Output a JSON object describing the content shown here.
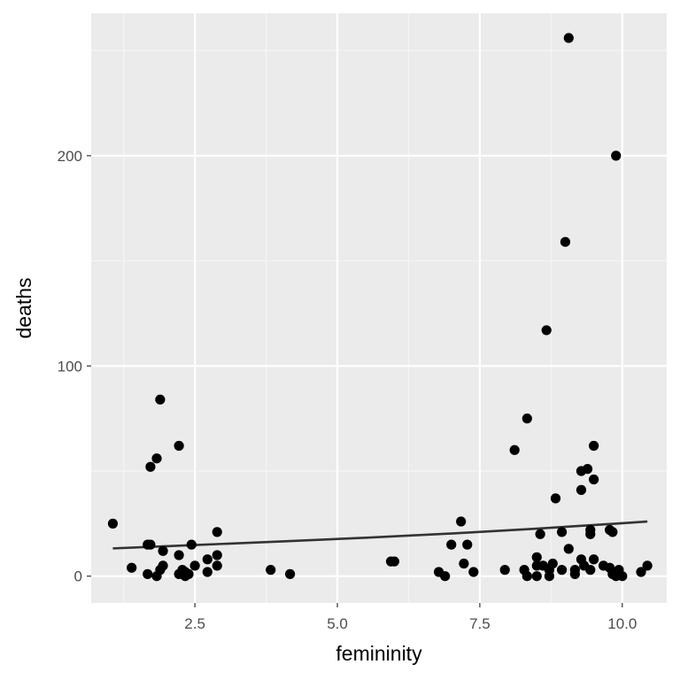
{
  "chart_data": {
    "type": "scatter",
    "title": "",
    "xlabel": "femininity",
    "ylabel": "deaths",
    "xlim": [
      0.68,
      10.78
    ],
    "ylim": [
      -12.75,
      267.75
    ],
    "x_ticks": [
      2.5,
      5.0,
      7.5,
      10.0
    ],
    "x_tick_labels": [
      "2.5",
      "5.0",
      "7.5",
      "10.0"
    ],
    "y_ticks": [
      0,
      100,
      200
    ],
    "y_tick_labels": [
      "0",
      "100",
      "200"
    ],
    "grid": true,
    "legend": "none",
    "colors": {
      "panel_background": "#ebebeb",
      "grid_major": "#ffffff",
      "grid_minor": "#f5f5f5",
      "points": "#000000",
      "trend_line": "#333333",
      "confidence_band": "#999999"
    },
    "points": [
      {
        "x": 1.06,
        "y": 25
      },
      {
        "x": 1.39,
        "y": 4
      },
      {
        "x": 1.67,
        "y": 1
      },
      {
        "x": 1.67,
        "y": 15
      },
      {
        "x": 1.72,
        "y": 52
      },
      {
        "x": 1.72,
        "y": 15
      },
      {
        "x": 1.83,
        "y": 0
      },
      {
        "x": 1.83,
        "y": 56
      },
      {
        "x": 1.89,
        "y": 84
      },
      {
        "x": 1.89,
        "y": 3
      },
      {
        "x": 1.94,
        "y": 5
      },
      {
        "x": 1.94,
        "y": 12
      },
      {
        "x": 2.22,
        "y": 62
      },
      {
        "x": 2.22,
        "y": 1
      },
      {
        "x": 2.22,
        "y": 10
      },
      {
        "x": 2.28,
        "y": 3
      },
      {
        "x": 2.33,
        "y": 0
      },
      {
        "x": 2.33,
        "y": 2
      },
      {
        "x": 2.39,
        "y": 1
      },
      {
        "x": 2.44,
        "y": 15
      },
      {
        "x": 2.5,
        "y": 5
      },
      {
        "x": 2.72,
        "y": 8
      },
      {
        "x": 2.72,
        "y": 2
      },
      {
        "x": 2.89,
        "y": 21
      },
      {
        "x": 2.89,
        "y": 10
      },
      {
        "x": 2.89,
        "y": 5
      },
      {
        "x": 3.83,
        "y": 3
      },
      {
        "x": 4.17,
        "y": 1
      },
      {
        "x": 5.94,
        "y": 7
      },
      {
        "x": 6.0,
        "y": 7
      },
      {
        "x": 6.78,
        "y": 2
      },
      {
        "x": 6.89,
        "y": 0
      },
      {
        "x": 7.0,
        "y": 15
      },
      {
        "x": 7.17,
        "y": 26
      },
      {
        "x": 7.22,
        "y": 6
      },
      {
        "x": 7.28,
        "y": 15
      },
      {
        "x": 7.39,
        "y": 2
      },
      {
        "x": 7.94,
        "y": 3
      },
      {
        "x": 8.11,
        "y": 60
      },
      {
        "x": 8.28,
        "y": 3
      },
      {
        "x": 8.33,
        "y": 75
      },
      {
        "x": 8.33,
        "y": 0
      },
      {
        "x": 8.5,
        "y": 9
      },
      {
        "x": 8.5,
        "y": 0
      },
      {
        "x": 8.5,
        "y": 5
      },
      {
        "x": 8.56,
        "y": 20
      },
      {
        "x": 8.61,
        "y": 5
      },
      {
        "x": 8.67,
        "y": 117
      },
      {
        "x": 8.72,
        "y": 0
      },
      {
        "x": 8.72,
        "y": 3
      },
      {
        "x": 8.78,
        "y": 6
      },
      {
        "x": 8.83,
        "y": 37
      },
      {
        "x": 8.94,
        "y": 21
      },
      {
        "x": 8.94,
        "y": 3
      },
      {
        "x": 9.0,
        "y": 159
      },
      {
        "x": 9.06,
        "y": 256
      },
      {
        "x": 9.06,
        "y": 13
      },
      {
        "x": 9.17,
        "y": 1
      },
      {
        "x": 9.17,
        "y": 3
      },
      {
        "x": 9.28,
        "y": 50
      },
      {
        "x": 9.28,
        "y": 41
      },
      {
        "x": 9.28,
        "y": 8
      },
      {
        "x": 9.33,
        "y": 5
      },
      {
        "x": 9.39,
        "y": 51
      },
      {
        "x": 9.44,
        "y": 20
      },
      {
        "x": 9.44,
        "y": 22
      },
      {
        "x": 9.44,
        "y": 3
      },
      {
        "x": 9.5,
        "y": 46
      },
      {
        "x": 9.5,
        "y": 62
      },
      {
        "x": 9.5,
        "y": 8
      },
      {
        "x": 9.67,
        "y": 5
      },
      {
        "x": 9.78,
        "y": 4
      },
      {
        "x": 9.78,
        "y": 22
      },
      {
        "x": 9.83,
        "y": 21
      },
      {
        "x": 9.83,
        "y": 1
      },
      {
        "x": 9.89,
        "y": 200
      },
      {
        "x": 9.89,
        "y": 0
      },
      {
        "x": 9.94,
        "y": 3
      },
      {
        "x": 9.94,
        "y": 1
      },
      {
        "x": 10.0,
        "y": 0
      },
      {
        "x": 10.33,
        "y": 2
      },
      {
        "x": 10.44,
        "y": 5
      }
    ],
    "trend": [
      {
        "x": 1.06,
        "y": 13.2
      },
      {
        "x": 2.5,
        "y": 14.8
      },
      {
        "x": 4.0,
        "y": 16.5
      },
      {
        "x": 5.5,
        "y": 18.3
      },
      {
        "x": 7.0,
        "y": 20.3
      },
      {
        "x": 8.5,
        "y": 22.6
      },
      {
        "x": 10.0,
        "y": 25.2
      },
      {
        "x": 10.44,
        "y": 26.0
      }
    ],
    "trend_band": [
      {
        "x": 1.06,
        "lo": 12.6,
        "hi": 13.8
      },
      {
        "x": 2.5,
        "lo": 14.3,
        "hi": 15.3
      },
      {
        "x": 4.0,
        "lo": 16.1,
        "hi": 16.9
      },
      {
        "x": 5.5,
        "lo": 17.9,
        "hi": 18.7
      },
      {
        "x": 7.0,
        "lo": 19.9,
        "hi": 20.7
      },
      {
        "x": 8.5,
        "lo": 22.1,
        "hi": 23.1
      },
      {
        "x": 10.0,
        "lo": 24.6,
        "hi": 25.8
      },
      {
        "x": 10.44,
        "lo": 25.3,
        "hi": 26.7
      }
    ]
  }
}
